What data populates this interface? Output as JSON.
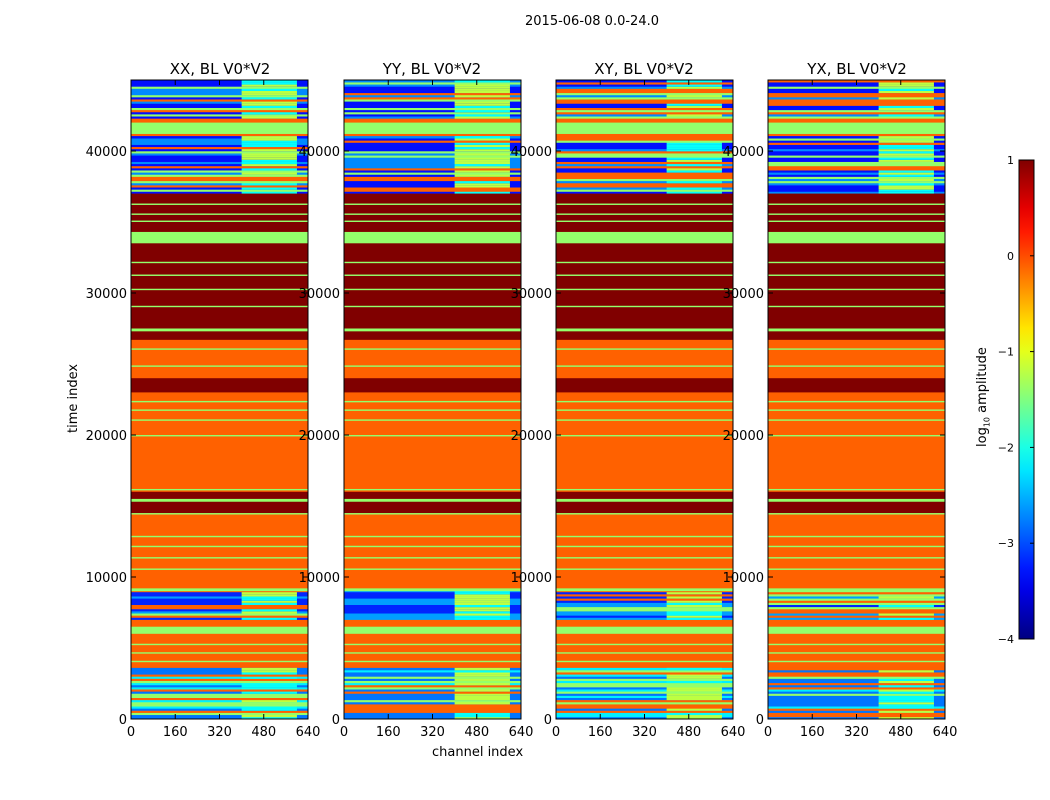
{
  "chart_data": {
    "type": "heatmap",
    "title": "2015-06-08 0.0-24.0",
    "xlabel": "channel index",
    "ylabel": "time index",
    "xlim": [
      0,
      640
    ],
    "ylim": [
      0,
      45000
    ],
    "xticks": [
      0,
      160,
      320,
      480,
      640
    ],
    "yticks": [
      0,
      10000,
      20000,
      30000,
      40000
    ],
    "panels": [
      {
        "title": "XX, BL V0*V2"
      },
      {
        "title": "YY, BL V0*V2"
      },
      {
        "title": "XY, BL V0*V2"
      },
      {
        "title": "YX, BL V0*V2"
      }
    ],
    "colorbar": {
      "label": "log10 amplitude",
      "label_main": "log",
      "label_sub": "10",
      "label_rest": " amplitude",
      "range": [
        -4,
        1
      ],
      "ticks": [
        1,
        0,
        -1,
        -2,
        -3,
        -4
      ],
      "colormap": "jet"
    },
    "base_value": -0.1,
    "bands": [
      [
        14500,
        16000,
        1
      ],
      [
        15300,
        15500,
        -1.4
      ],
      [
        23000,
        24000,
        1
      ],
      [
        26700,
        37000,
        1
      ],
      [
        33500,
        34300,
        -1.4
      ],
      [
        6000,
        6500,
        -1.4
      ],
      [
        41200,
        42000,
        -1.4
      ],
      [
        27300,
        27500,
        -1.4
      ],
      [
        29000,
        29100,
        -1.4
      ],
      [
        30200,
        30300,
        -1.4
      ],
      [
        31200,
        31300,
        -1.4
      ],
      [
        32100,
        32200,
        -1.4
      ],
      [
        35000,
        35100,
        -1.4
      ],
      [
        35500,
        35600,
        -1.4
      ],
      [
        36200,
        36300,
        -1.4
      ],
      [
        16100,
        16200,
        -1.4
      ],
      [
        19900,
        20000,
        -1.4
      ],
      [
        21000,
        21100,
        -1.4
      ],
      [
        21700,
        21800,
        -1.4
      ],
      [
        22300,
        22400,
        -1.4
      ],
      [
        24800,
        24900,
        -1.4
      ],
      [
        26000,
        26100,
        -1.4
      ],
      [
        10500,
        10600,
        -1.4
      ],
      [
        11300,
        11400,
        -1.4
      ],
      [
        12100,
        12200,
        -1.4
      ],
      [
        12800,
        12900,
        -1.4
      ],
      [
        14400,
        14500,
        -1.4
      ],
      [
        9000,
        9200,
        -1.4
      ],
      [
        4000,
        4100,
        -1.4
      ],
      [
        4600,
        4700,
        -1.4
      ],
      [
        5200,
        5300,
        -1.4
      ]
    ],
    "noisy_ranges": [
      [
        0,
        3500,
        -2.8
      ],
      [
        7000,
        9000,
        -3.2
      ],
      [
        37000,
        41000,
        -3.3
      ],
      [
        42300,
        45000,
        -3.3
      ]
    ],
    "bright_channels": [
      400,
      600
    ]
  }
}
